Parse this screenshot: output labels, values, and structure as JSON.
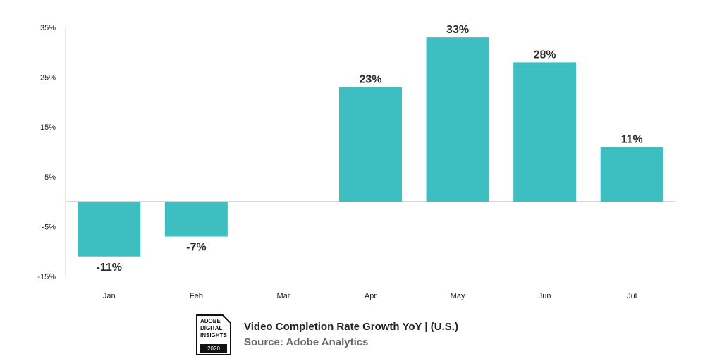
{
  "chart_data": {
    "type": "bar",
    "categories": [
      "Jan",
      "Feb",
      "Mar",
      "Apr",
      "May",
      "Jun",
      "Jul"
    ],
    "values": [
      -11,
      -7,
      null,
      23,
      33,
      28,
      11
    ],
    "data_labels": [
      "-11%",
      "-7%",
      "",
      "23%",
      "33%",
      "28%",
      "11%"
    ],
    "ylim": [
      -15,
      35
    ],
    "yticks": [
      35,
      25,
      15,
      5,
      -5,
      -15
    ],
    "ytick_labels": [
      "35%",
      "25%",
      "15%",
      "5%",
      "-5%",
      "-15%"
    ],
    "title": "",
    "xlabel": "",
    "ylabel": "",
    "grid": false,
    "bar_color": "#3dbfc1"
  },
  "footer": {
    "badge_lines": [
      "ADOBE",
      "DIGITAL",
      "INSIGHTS"
    ],
    "badge_year": "2020",
    "title": "Video Completion Rate Growth YoY | (U.S.)",
    "source": "Source: Adobe Analytics"
  }
}
